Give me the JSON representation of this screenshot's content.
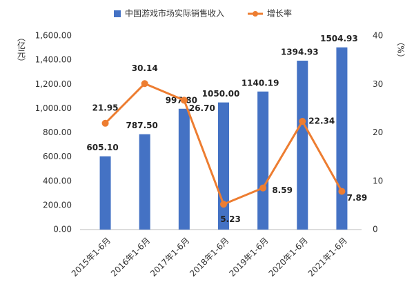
{
  "chart_data": {
    "type": "bar",
    "y_label": "（亿元）",
    "y2_label": "（%）",
    "categories": [
      "2015年1-6月",
      "2016年1-6月",
      "2017年1-6月",
      "2018年1-6月",
      "2019年1-6月",
      "2020年1-6月",
      "2021年1-6月"
    ],
    "series": [
      {
        "name": "中国游戏市场实际销售收入",
        "type": "bar",
        "color": "#4472c4",
        "values": [
          605.1,
          787.5,
          997.8,
          1050,
          1140.19,
          1394.93,
          1504.93
        ],
        "value_labels": [
          "605.10",
          "787.50",
          "997.80",
          "1050.00",
          "1140.19",
          "1394.93",
          "1504.93"
        ]
      },
      {
        "name": "增长率",
        "type": "line",
        "axis": "y2",
        "color": "#ed7d31",
        "values": [
          21.95,
          30.14,
          26.7,
          5.23,
          8.59,
          22.34,
          7.89
        ],
        "value_labels": [
          "21.95",
          "30.14",
          "26.70",
          "5.23",
          "8.59",
          "22.34",
          "7.89"
        ]
      }
    ],
    "ylim": [
      0,
      1600
    ],
    "yticks": [
      {
        "value": 0,
        "label": "0.00"
      },
      {
        "value": 200,
        "label": "200.00"
      },
      {
        "value": 400,
        "label": "400.00"
      },
      {
        "value": 600,
        "label": "600.00"
      },
      {
        "value": 800,
        "label": "800.00"
      },
      {
        "value": 1000,
        "label": "1,000.00"
      },
      {
        "value": 1200,
        "label": "1,200.00"
      },
      {
        "value": 1400,
        "label": "1,400.00"
      },
      {
        "value": 1600,
        "label": "1,600.00"
      }
    ],
    "y2lim": [
      0,
      40
    ],
    "y2ticks": [
      0,
      10,
      20,
      30,
      40
    ],
    "grid": false
  }
}
